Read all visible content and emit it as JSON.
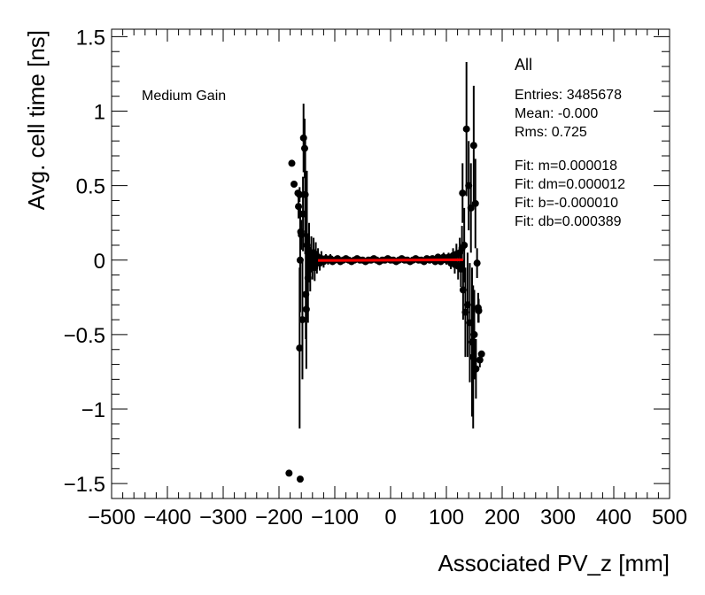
{
  "chart_data": {
    "type": "scatter",
    "xlabel": "Associated PV_z [mm]",
    "ylabel": "Avg. cell time [ns]",
    "xlim": [
      -500,
      500
    ],
    "ylim": [
      -1.6,
      1.55
    ],
    "xticks": [
      -500,
      -400,
      -300,
      -200,
      -100,
      0,
      100,
      200,
      300,
      400,
      500
    ],
    "yticks": [
      -1.5,
      -1,
      -0.5,
      0,
      0.5,
      1,
      1.5
    ],
    "xtick_labels": [
      "−500",
      "−400",
      "−300",
      "−200",
      "−100",
      "0",
      "100",
      "200",
      "300",
      "400",
      "500"
    ],
    "ytick_labels": [
      "−1.5",
      "−1",
      "−0.5",
      "0",
      "0.5",
      "1",
      "1.5"
    ],
    "annotation": "Medium Gain",
    "stats": {
      "title": "All",
      "entries": "Entries: 3485678",
      "mean": "Mean: -0.000",
      "rms": "Rms: 0.725",
      "fit_m": "Fit: m=0.000018",
      "fit_dm": "Fit: dm=0.000012",
      "fit_b": "Fit: b=-0.000010",
      "fit_db": "Fit: db=0.000389"
    },
    "fit_line": {
      "x": [
        -130,
        130
      ],
      "y": [
        -0.0023,
        0.0023
      ],
      "color": "#ff0000"
    },
    "points": [
      {
        "x": -182,
        "y": -1.43,
        "err": 0
      },
      {
        "x": -162,
        "y": -1.47,
        "err": 0
      },
      {
        "x": -177,
        "y": 0.65,
        "err": 0
      },
      {
        "x": -173,
        "y": 0.51,
        "err": 0
      },
      {
        "x": -166,
        "y": 0.45,
        "err": 0
      },
      {
        "x": -163,
        "y": 0.44,
        "err": 0.05
      },
      {
        "x": -165,
        "y": 0.36,
        "err": 0.08
      },
      {
        "x": -161,
        "y": 0.19,
        "err": 0.06
      },
      {
        "x": -160,
        "y": 0.17,
        "err": 0.1
      },
      {
        "x": -163,
        "y": -0.59,
        "err": 0.54
      },
      {
        "x": -158,
        "y": -0.4,
        "err": 0.4
      },
      {
        "x": -156,
        "y": 0.82,
        "err": 0.23
      },
      {
        "x": -154,
        "y": 0.75,
        "err": 0.2
      },
      {
        "x": -153,
        "y": 0.44,
        "err": 0.4
      },
      {
        "x": -157,
        "y": 0.31,
        "err": 0.25
      },
      {
        "x": -152,
        "y": -0.23,
        "err": 0.3
      },
      {
        "x": -151,
        "y": -0.33,
        "err": 0.4
      },
      {
        "x": -150,
        "y": 0.1,
        "err": 0.5
      },
      {
        "x": -148,
        "y": -0.12,
        "err": 0.3
      },
      {
        "x": -162,
        "y": 0.0,
        "err": 0.35
      },
      {
        "x": -146,
        "y": 0.05,
        "err": 0.2
      },
      {
        "x": -144,
        "y": -0.06,
        "err": 0.15
      },
      {
        "x": -142,
        "y": 0.04,
        "err": 0.12
      },
      {
        "x": -140,
        "y": -0.03,
        "err": 0.1
      },
      {
        "x": -138,
        "y": 0.05,
        "err": 0.1
      },
      {
        "x": -136,
        "y": -0.05,
        "err": 0.09
      },
      {
        "x": -134,
        "y": 0.04,
        "err": 0.08
      },
      {
        "x": -132,
        "y": -0.02,
        "err": 0.07
      },
      {
        "x": -130,
        "y": 0.02,
        "err": 0.06
      },
      {
        "x": -127,
        "y": -0.02,
        "err": 0.05
      },
      {
        "x": -124,
        "y": 0.01,
        "err": 0.05
      },
      {
        "x": -120,
        "y": -0.01,
        "err": 0.04
      },
      {
        "x": -116,
        "y": 0.01,
        "err": 0.03
      },
      {
        "x": -112,
        "y": 0.0,
        "err": 0.03
      },
      {
        "x": -108,
        "y": 0.01,
        "err": 0.03
      },
      {
        "x": -104,
        "y": -0.01,
        "err": 0.02
      },
      {
        "x": -100,
        "y": 0.0,
        "err": 0.02
      },
      {
        "x": -95,
        "y": 0.01,
        "err": 0.02
      },
      {
        "x": -90,
        "y": -0.01,
        "err": 0.02
      },
      {
        "x": -85,
        "y": 0.0,
        "err": 0.02
      },
      {
        "x": -80,
        "y": 0.01,
        "err": 0.01
      },
      {
        "x": -75,
        "y": 0.0,
        "err": 0.01
      },
      {
        "x": -70,
        "y": -0.01,
        "err": 0.01
      },
      {
        "x": -65,
        "y": 0.0,
        "err": 0.01
      },
      {
        "x": -60,
        "y": 0.01,
        "err": 0.01
      },
      {
        "x": -55,
        "y": 0.0,
        "err": 0.01
      },
      {
        "x": -50,
        "y": 0.0,
        "err": 0.01
      },
      {
        "x": -45,
        "y": -0.01,
        "err": 0.01
      },
      {
        "x": -40,
        "y": 0.0,
        "err": 0.01
      },
      {
        "x": -35,
        "y": 0.0,
        "err": 0.01
      },
      {
        "x": -30,
        "y": 0.01,
        "err": 0.01
      },
      {
        "x": -25,
        "y": 0.0,
        "err": 0.01
      },
      {
        "x": -20,
        "y": -0.01,
        "err": 0.01
      },
      {
        "x": -15,
        "y": 0.0,
        "err": 0.01
      },
      {
        "x": -10,
        "y": 0.0,
        "err": 0.01
      },
      {
        "x": -5,
        "y": 0.01,
        "err": 0.01
      },
      {
        "x": 0,
        "y": 0.0,
        "err": 0.01
      },
      {
        "x": 5,
        "y": 0.0,
        "err": 0.01
      },
      {
        "x": 10,
        "y": -0.01,
        "err": 0.01
      },
      {
        "x": 15,
        "y": 0.0,
        "err": 0.01
      },
      {
        "x": 20,
        "y": 0.01,
        "err": 0.01
      },
      {
        "x": 25,
        "y": 0.0,
        "err": 0.01
      },
      {
        "x": 30,
        "y": 0.0,
        "err": 0.01
      },
      {
        "x": 35,
        "y": -0.01,
        "err": 0.01
      },
      {
        "x": 40,
        "y": 0.0,
        "err": 0.01
      },
      {
        "x": 45,
        "y": 0.01,
        "err": 0.01
      },
      {
        "x": 50,
        "y": 0.0,
        "err": 0.01
      },
      {
        "x": 55,
        "y": 0.0,
        "err": 0.01
      },
      {
        "x": 60,
        "y": -0.01,
        "err": 0.01
      },
      {
        "x": 65,
        "y": 0.01,
        "err": 0.01
      },
      {
        "x": 70,
        "y": 0.0,
        "err": 0.01
      },
      {
        "x": 75,
        "y": 0.01,
        "err": 0.02
      },
      {
        "x": 80,
        "y": -0.01,
        "err": 0.02
      },
      {
        "x": 85,
        "y": 0.02,
        "err": 0.02
      },
      {
        "x": 90,
        "y": -0.01,
        "err": 0.02
      },
      {
        "x": 95,
        "y": 0.02,
        "err": 0.03
      },
      {
        "x": 100,
        "y": 0.0,
        "err": 0.03
      },
      {
        "x": 104,
        "y": 0.02,
        "err": 0.03
      },
      {
        "x": 108,
        "y": -0.02,
        "err": 0.04
      },
      {
        "x": 112,
        "y": 0.03,
        "err": 0.05
      },
      {
        "x": 115,
        "y": -0.03,
        "err": 0.06
      },
      {
        "x": 118,
        "y": 0.04,
        "err": 0.07
      },
      {
        "x": 121,
        "y": -0.04,
        "err": 0.09
      },
      {
        "x": 124,
        "y": 0.05,
        "err": 0.1
      },
      {
        "x": 126,
        "y": -0.06,
        "err": 0.12
      },
      {
        "x": 128,
        "y": 0.08,
        "err": 0.15
      },
      {
        "x": 130,
        "y": -0.2,
        "err": 0.2
      },
      {
        "x": 132,
        "y": 0.1,
        "err": 0.25
      },
      {
        "x": 134,
        "y": -0.35,
        "err": 0.3
      },
      {
        "x": 129,
        "y": 0.45,
        "err": 0.2
      },
      {
        "x": 136,
        "y": 0.88,
        "err": 0.45
      },
      {
        "x": 138,
        "y": -0.3,
        "err": 0.35
      },
      {
        "x": 140,
        "y": 0.5,
        "err": 0.3
      },
      {
        "x": 142,
        "y": -0.42,
        "err": 0.4
      },
      {
        "x": 144,
        "y": 0.35,
        "err": 0.3
      },
      {
        "x": 146,
        "y": -0.55,
        "err": 0.5
      },
      {
        "x": 148,
        "y": -0.65,
        "err": 0.48
      },
      {
        "x": 149,
        "y": 0.77,
        "err": 0.4
      },
      {
        "x": 150,
        "y": -0.5,
        "err": 0.3
      },
      {
        "x": 152,
        "y": 0.38,
        "err": 0.3
      },
      {
        "x": 153,
        "y": -0.73,
        "err": 0.2
      },
      {
        "x": 155,
        "y": -0.02,
        "err": 0.1
      },
      {
        "x": 157,
        "y": -0.32,
        "err": 0.1
      },
      {
        "x": 158,
        "y": -0.34,
        "err": 0.08
      },
      {
        "x": 160,
        "y": -0.67,
        "err": 0.05
      },
      {
        "x": 163,
        "y": -0.63,
        "err": 0
      }
    ]
  }
}
